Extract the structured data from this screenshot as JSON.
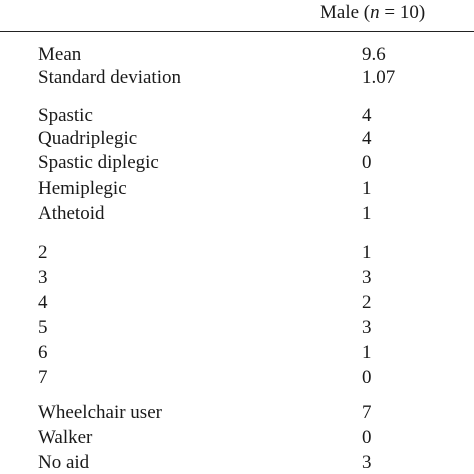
{
  "header": {
    "column_prefix": "Male (",
    "column_n_italic": "n",
    "column_suffix": " = 10)"
  },
  "rows": [
    {
      "label": "Mean",
      "value": "9.6"
    },
    {
      "label": "Standard deviation",
      "value": "1.07"
    },
    {
      "label": "Spastic",
      "value": "4"
    },
    {
      "label": "Quadriplegic",
      "value": "4"
    },
    {
      "label": "Spastic diplegic",
      "value": "0"
    },
    {
      "label": "Hemiplegic",
      "value": "1"
    },
    {
      "label": "Athetoid",
      "value": "1"
    },
    {
      "label": "2",
      "value": "1"
    },
    {
      "label": "3",
      "value": "3"
    },
    {
      "label": "4",
      "value": "2"
    },
    {
      "label": "5",
      "value": "3"
    },
    {
      "label": "6",
      "value": "1"
    },
    {
      "label": "7",
      "value": "0"
    },
    {
      "label": "Wheelchair user",
      "value": "7"
    },
    {
      "label": "Walker",
      "value": "0"
    },
    {
      "label": "No aid",
      "value": "3"
    }
  ]
}
